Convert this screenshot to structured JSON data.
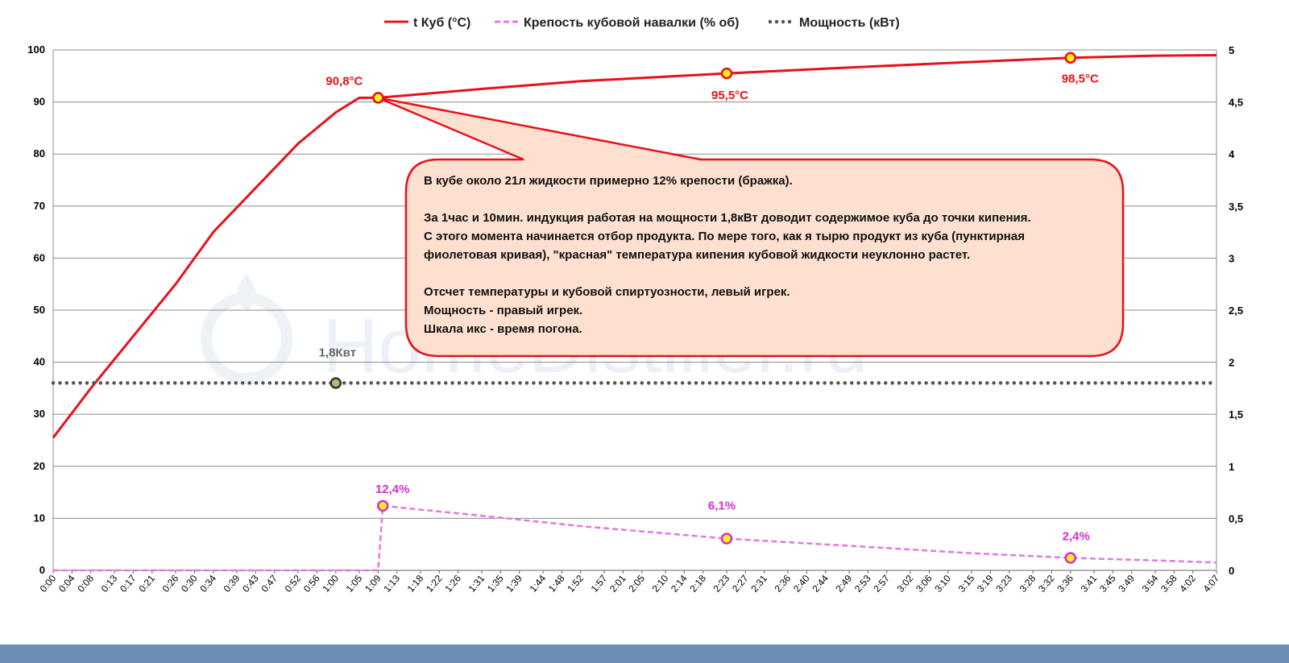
{
  "chart_data": {
    "type": "line",
    "watermark": "HomeDistiller.ru",
    "xlim": [
      "0:00",
      "4:07"
    ],
    "x_tick_labels": [
      "0:00",
      "0:04",
      "0:08",
      "0:13",
      "0:17",
      "0:21",
      "0:26",
      "0:30",
      "0:34",
      "0:39",
      "0:43",
      "0:47",
      "0:52",
      "0:56",
      "1:00",
      "1:05",
      "1:09",
      "1:13",
      "1:18",
      "1:22",
      "1:26",
      "1:31",
      "1:35",
      "1:39",
      "1:44",
      "1:48",
      "1:52",
      "1:57",
      "2:01",
      "2:05",
      "2:10",
      "2:14",
      "2:18",
      "2:23",
      "2:27",
      "2:31",
      "2:36",
      "2:40",
      "2:44",
      "2:49",
      "2:53",
      "2:57",
      "3:02",
      "3:06",
      "3:10",
      "3:15",
      "3:19",
      "3:23",
      "3:28",
      "3:32",
      "3:36",
      "3:41",
      "3:45",
      "3:49",
      "3:54",
      "3:58",
      "4:02",
      "4:07"
    ],
    "y_left": {
      "ylim": [
        0,
        100
      ],
      "ticks": [
        "0",
        "10",
        "20",
        "30",
        "40",
        "50",
        "60",
        "70",
        "80",
        "90",
        "100"
      ]
    },
    "y_right": {
      "ylim": [
        0,
        5
      ],
      "ticks": [
        "0",
        "0,5",
        "1",
        "1,5",
        "2",
        "2,5",
        "3",
        "3,5",
        "4",
        "4,5",
        "5"
      ]
    },
    "grid": true,
    "legend_position": "top",
    "series": [
      {
        "name": "t Куб (°C)",
        "axis": "left",
        "color": "#e8101a",
        "style": "solid",
        "x": [
          "0:00",
          "0:08",
          "0:17",
          "0:26",
          "0:34",
          "0:43",
          "0:52",
          "1:00",
          "1:05",
          "1:09",
          "1:31",
          "1:52",
          "2:23",
          "2:53",
          "3:23",
          "3:36",
          "3:54",
          "4:07"
        ],
        "y": [
          25.5,
          35,
          45,
          55,
          65,
          73.5,
          82,
          88,
          90.8,
          90.8,
          92.5,
          94,
          95.5,
          96.8,
          98,
          98.5,
          98.9,
          99
        ]
      },
      {
        "name": "Крепость кубовой навалки (% об)",
        "axis": "left",
        "color": "#d42ed4",
        "style": "dashed",
        "x": [
          "0:00",
          "1:09",
          "1:10",
          "1:31",
          "1:52",
          "2:23",
          "2:53",
          "3:15",
          "3:36",
          "3:54",
          "4:07"
        ],
        "y": [
          0,
          0,
          12.4,
          10.5,
          8.5,
          6.1,
          4.5,
          3.3,
          2.4,
          1.9,
          1.5
        ]
      },
      {
        "name": "Мощность (кВт)",
        "axis": "right",
        "color": "#555555",
        "style": "dotted",
        "x": [
          "0:00",
          "4:07"
        ],
        "y": [
          1.8,
          1.8
        ]
      }
    ],
    "annotations": [
      {
        "text": "90,8°C",
        "series": "t Куб (°C)",
        "x": "1:09",
        "y": 90.8
      },
      {
        "text": "95,5°C",
        "series": "t Куб (°C)",
        "x": "2:23",
        "y": 95.5
      },
      {
        "text": "98,5°C",
        "series": "t Куб (°C)",
        "x": "3:36",
        "y": 98.5
      },
      {
        "text": "12,4%",
        "series": "Крепость кубовой навалки (% об)",
        "x": "1:10",
        "y": 12.4
      },
      {
        "text": "6,1%",
        "series": "Крепость кубовой навалки (% об)",
        "x": "2:23",
        "y": 6.1
      },
      {
        "text": "2,4%",
        "series": "Крепость кубовой навалки (% об)",
        "x": "3:36",
        "y": 2.4
      },
      {
        "text": "1,8Квт",
        "series": "Мощность (кВт)",
        "x": "1:00",
        "y": 1.8
      }
    ],
    "callout": {
      "lines": [
        "В кубе около 21л жидкости примерно 12% крепости (бражка).",
        "",
        "За 1час и 10мин. индукция работая на мощности 1,8кВт доводит содержимое куба до точки кипения.",
        "С этого момента начинается отбор продукта.  По мере того, как я тырю продукт из куба (пунктирная",
        "фиолетовая кривая), \"красная\" температура кипения кубовой жидкости неуклонно растет.",
        "",
        "Отсчет температуры и кубовой спиртуозности, левый игрек.",
        "Мощность - правый игрек.",
        "Шкала икс - время погона."
      ]
    }
  }
}
